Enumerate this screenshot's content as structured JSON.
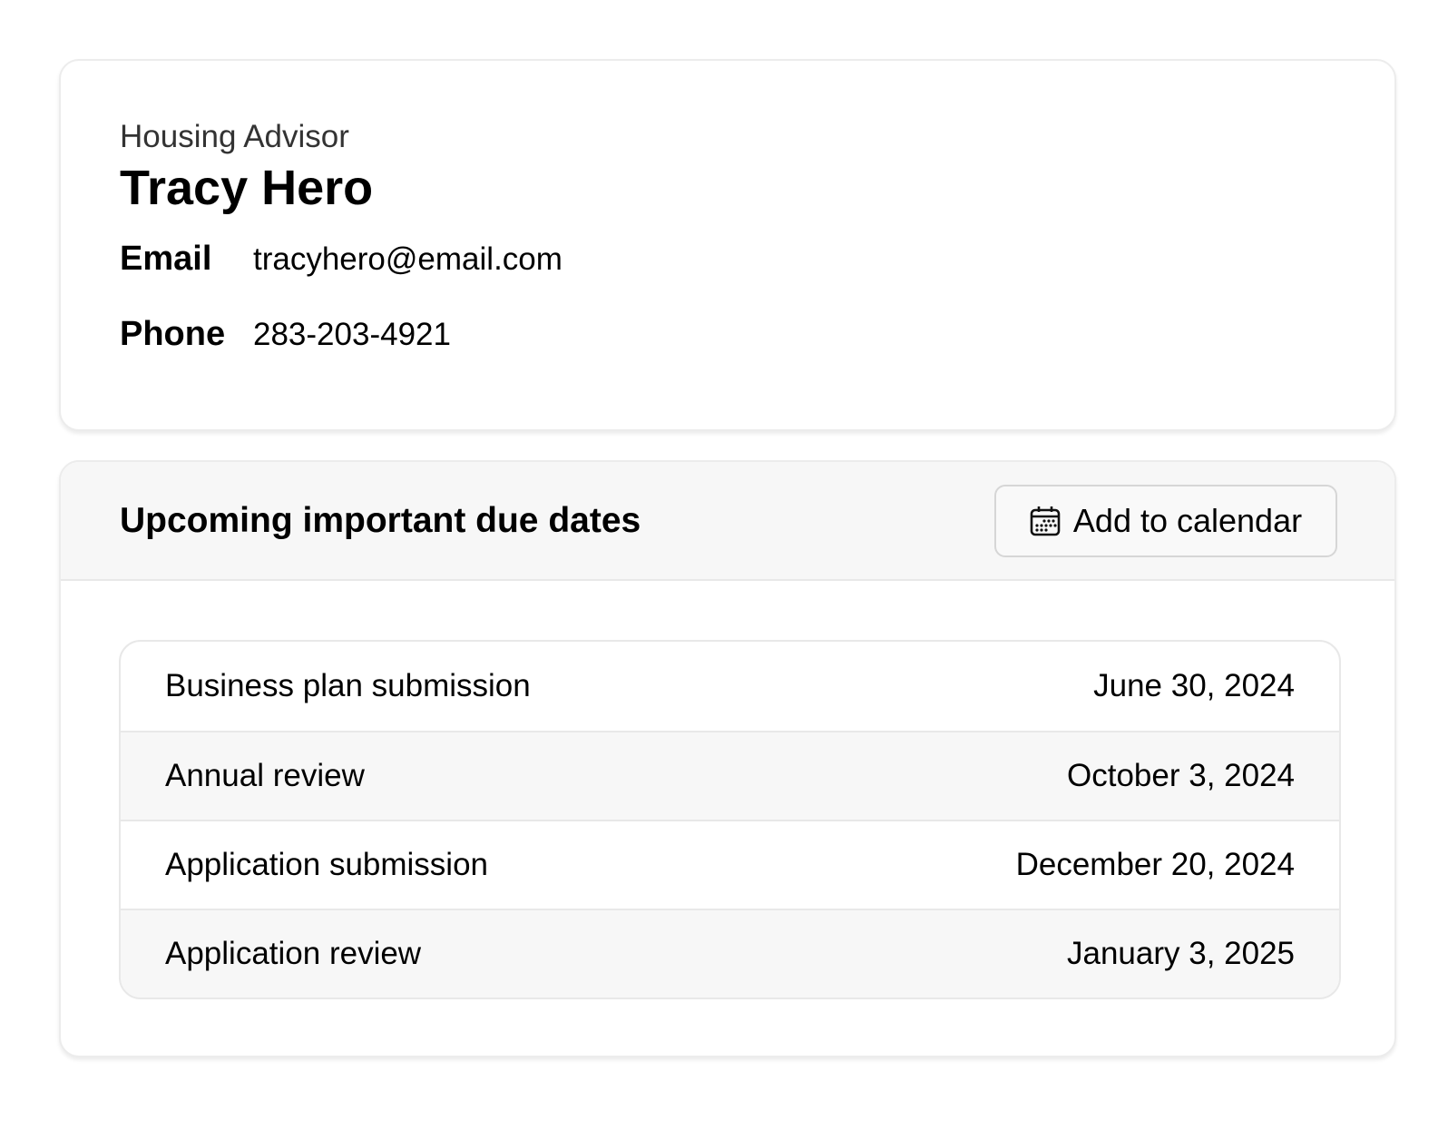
{
  "contact": {
    "role": "Housing Advisor",
    "name": "Tracy Hero",
    "fields": [
      {
        "label": "Email",
        "value": "tracyhero@email.com"
      },
      {
        "label": "Phone",
        "value": "283-203-4921"
      }
    ]
  },
  "due_dates": {
    "title": "Upcoming important due dates",
    "add_to_calendar": {
      "label": "Add to calendar",
      "icon": "calendar-icon"
    },
    "items": [
      {
        "name": "Business plan submission",
        "date": "June 30, 2024"
      },
      {
        "name": "Annual review",
        "date": "October 3, 2024"
      },
      {
        "name": "Application submission",
        "date": "December 20, 2024"
      },
      {
        "name": "Application review",
        "date": "January 3, 2025"
      }
    ]
  }
}
